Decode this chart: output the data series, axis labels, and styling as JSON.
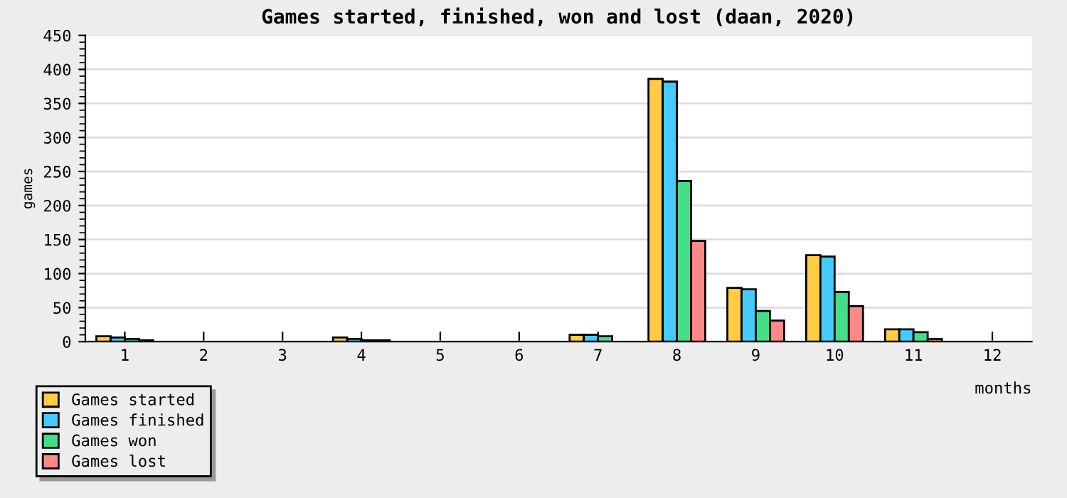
{
  "chart_data": {
    "type": "bar",
    "title": "Games started, finished, won and lost (daan, 2020)",
    "xlabel": "months",
    "ylabel": "games",
    "categories": [
      "1",
      "2",
      "3",
      "4",
      "5",
      "6",
      "7",
      "8",
      "9",
      "10",
      "11",
      "12"
    ],
    "series": [
      {
        "name": "Games started",
        "color": "#ffcc44",
        "values": [
          8,
          null,
          null,
          6,
          null,
          null,
          10,
          386,
          79,
          127,
          18,
          null
        ]
      },
      {
        "name": "Games finished",
        "color": "#44ccff",
        "values": [
          6,
          null,
          null,
          4,
          null,
          null,
          10,
          382,
          77,
          125,
          18,
          null
        ]
      },
      {
        "name": "Games won",
        "color": "#44dd88",
        "values": [
          4,
          null,
          null,
          2,
          null,
          null,
          8,
          236,
          45,
          73,
          14,
          null
        ]
      },
      {
        "name": "Games lost",
        "color": "#ff8888",
        "values": [
          2,
          null,
          null,
          2,
          null,
          null,
          null,
          148,
          31,
          52,
          4,
          null
        ]
      }
    ],
    "ylim": [
      0,
      450
    ],
    "yticks": [
      0,
      50,
      100,
      150,
      200,
      250,
      300,
      350,
      400,
      450
    ],
    "grid": "y",
    "legend": "bottom left"
  }
}
